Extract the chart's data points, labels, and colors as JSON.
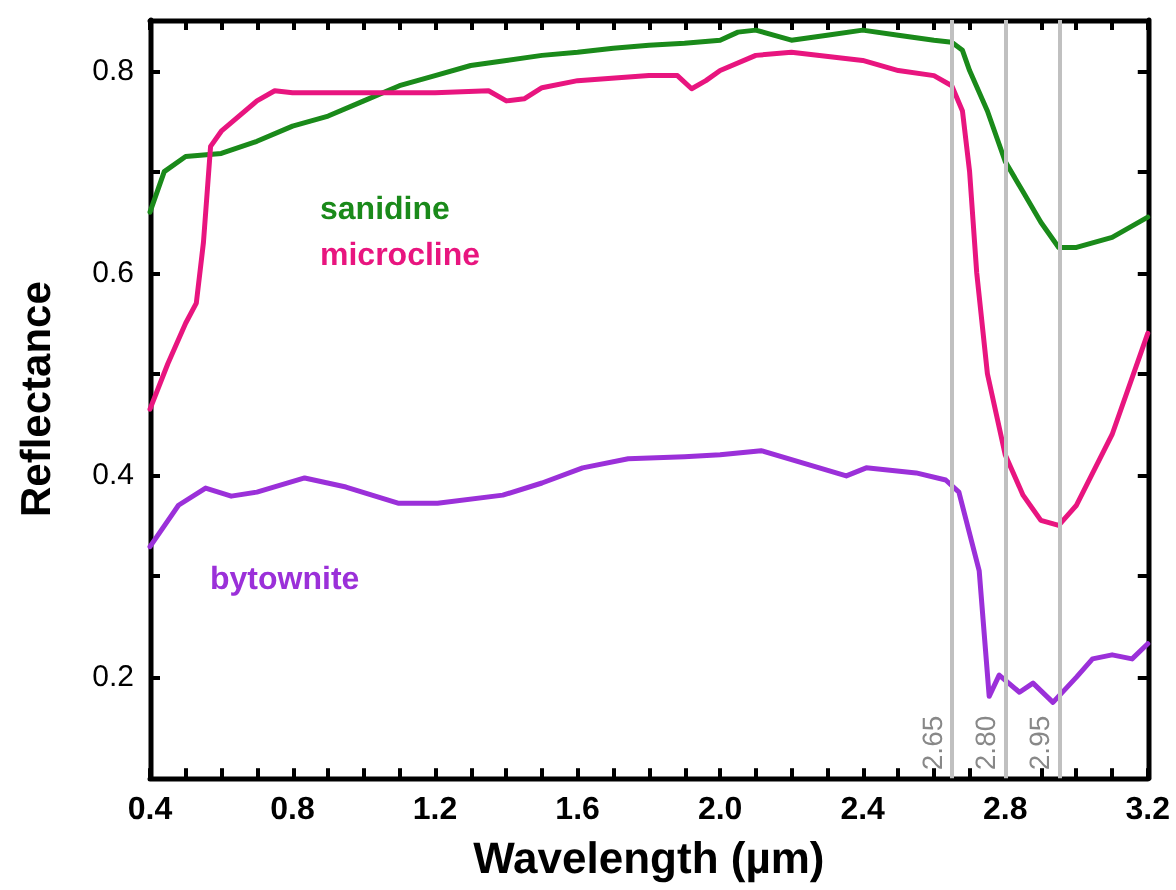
{
  "chart_data": {
    "type": "line",
    "xlabel": "Wavelength (µm)",
    "ylabel": "Reflectance",
    "xlim": [
      0.4,
      3.2
    ],
    "xticks": [
      0.4,
      {
        "value": 0.5,
        "label": null
      },
      {
        "value": 0.6,
        "label": null
      },
      {
        "value": 0.7,
        "label": null
      },
      0.8,
      {
        "value": 0.9,
        "label": null
      },
      {
        "value": 1.0,
        "label": null
      },
      {
        "value": 1.1,
        "label": null
      },
      1.2,
      {
        "value": 1.3,
        "label": null
      },
      {
        "value": 1.4,
        "label": null
      },
      {
        "value": 1.5,
        "label": null
      },
      1.6,
      {
        "value": 1.7,
        "label": null
      },
      {
        "value": 1.8,
        "label": null
      },
      {
        "value": 1.9,
        "label": null
      },
      {
        "value": 2,
        "label": "2.0"
      },
      {
        "value": 2.1,
        "label": null
      },
      {
        "value": 2.2,
        "label": null
      },
      {
        "value": 2.3,
        "label": null
      },
      2.4,
      {
        "value": 2.5,
        "label": null
      },
      {
        "value": 2.6,
        "label": null
      },
      {
        "value": 2.7,
        "label": null
      },
      2.8,
      {
        "value": 2.9,
        "label": null
      },
      {
        "value": 3.0,
        "label": null
      },
      {
        "value": 3.1,
        "label": null
      },
      3.2
    ],
    "ylim": [
      0.1,
      0.85
    ],
    "yticks": [
      0.2,
      {
        "value": 0.3,
        "label": null
      },
      0.4,
      {
        "value": 0.5,
        "label": null
      },
      0.6,
      {
        "value": 0.7,
        "label": null
      },
      0.8
    ],
    "grid": false,
    "legend": false,
    "marker": "none",
    "line_style": "solid",
    "ref_lines": [
      {
        "axis": "x",
        "value": 2.65,
        "label": "2.65",
        "color": "#c0c0c0"
      },
      {
        "axis": "x",
        "value": 2.8,
        "label": "2.80",
        "color": "#c0c0c0"
      },
      {
        "axis": "x",
        "value": 2.95,
        "label": "2.95",
        "color": "#c0c0c0"
      }
    ],
    "series": [
      {
        "name": "sanidine",
        "color": "#1a8a1a",
        "x": [
          0.4,
          0.44,
          0.5,
          0.6,
          0.7,
          0.8,
          0.9,
          1.0,
          1.1,
          1.2,
          1.3,
          1.4,
          1.5,
          1.6,
          1.7,
          1.8,
          1.9,
          2.0,
          2.05,
          2.1,
          2.15,
          2.2,
          2.3,
          2.4,
          2.5,
          2.6,
          2.65,
          2.68,
          2.7,
          2.75,
          2.8,
          2.85,
          2.9,
          2.95,
          3.0,
          3.1,
          3.2
        ],
        "values": [
          0.66,
          0.7,
          0.715,
          0.718,
          0.73,
          0.745,
          0.755,
          0.77,
          0.785,
          0.795,
          0.805,
          0.81,
          0.815,
          0.818,
          0.822,
          0.825,
          0.827,
          0.83,
          0.838,
          0.84,
          0.835,
          0.83,
          0.835,
          0.84,
          0.835,
          0.83,
          0.828,
          0.82,
          0.8,
          0.76,
          0.71,
          0.68,
          0.65,
          0.625,
          0.625,
          0.635,
          0.655
        ]
      },
      {
        "name": "microcline",
        "color": "#e8157f",
        "x": [
          0.4,
          0.45,
          0.5,
          0.53,
          0.55,
          0.57,
          0.6,
          0.7,
          0.75,
          0.8,
          1.0,
          1.2,
          1.35,
          1.4,
          1.45,
          1.5,
          1.6,
          1.8,
          1.88,
          1.92,
          1.96,
          2.0,
          2.1,
          2.2,
          2.4,
          2.5,
          2.6,
          2.65,
          2.68,
          2.7,
          2.72,
          2.75,
          2.8,
          2.85,
          2.9,
          2.95,
          3.0,
          3.1,
          3.2
        ],
        "values": [
          0.465,
          0.51,
          0.55,
          0.57,
          0.63,
          0.725,
          0.74,
          0.77,
          0.78,
          0.778,
          0.778,
          0.778,
          0.78,
          0.77,
          0.772,
          0.783,
          0.79,
          0.795,
          0.795,
          0.782,
          0.79,
          0.8,
          0.815,
          0.818,
          0.81,
          0.8,
          0.795,
          0.785,
          0.76,
          0.7,
          0.6,
          0.5,
          0.42,
          0.38,
          0.355,
          0.35,
          0.37,
          0.44,
          0.54
        ]
      },
      {
        "name": "bytownite",
        "color": "#9b30d9",
        "x": [
          0.4,
          0.48,
          0.556,
          0.628,
          0.7,
          0.834,
          0.95,
          1.096,
          1.207,
          1.39,
          1.5,
          1.614,
          1.742,
          1.9,
          2.0,
          2.115,
          2.25,
          2.354,
          2.41,
          2.55,
          2.633,
          2.67,
          2.727,
          2.755,
          2.783,
          2.84,
          2.878,
          2.934,
          3.0,
          3.045,
          3.1,
          3.156,
          3.2
        ],
        "values": [
          0.329,
          0.37,
          0.387,
          0.379,
          0.383,
          0.397,
          0.388,
          0.372,
          0.372,
          0.38,
          0.392,
          0.407,
          0.416,
          0.418,
          0.42,
          0.424,
          0.41,
          0.399,
          0.407,
          0.402,
          0.395,
          0.383,
          0.305,
          0.181,
          0.202,
          0.185,
          0.194,
          0.175,
          0.2,
          0.218,
          0.222,
          0.218,
          0.233
        ]
      }
    ]
  }
}
